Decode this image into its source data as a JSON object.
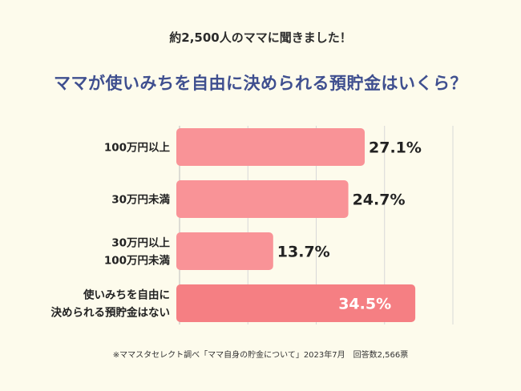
{
  "header": {
    "subtitle": "約2,500人のママに聞きました！",
    "title": "ママが使いみちを自由に決められる預貯金はいくら？"
  },
  "colors": {
    "background": "#fdfbec",
    "bar": "#f99397",
    "bar_highlight": "#f57f83",
    "grid": "#d8d8d8",
    "title": "#3f4f8f"
  },
  "chart_data": {
    "type": "bar",
    "orientation": "horizontal",
    "categories": [
      [
        "100万円以上"
      ],
      [
        "30万円未満"
      ],
      [
        "30万円以上",
        "100万円未満"
      ],
      [
        "使いみちを自由に",
        "決められる預貯金はない"
      ]
    ],
    "values": [
      27.1,
      24.7,
      13.7,
      34.5
    ],
    "value_labels": [
      "27.1%",
      "24.7%",
      "13.7%",
      "34.5%"
    ],
    "highlight_index": 3,
    "xlim": [
      0,
      40
    ],
    "grid": true,
    "gridlines": [
      10,
      20,
      30,
      40
    ]
  },
  "footnote": "※ママスタセレクト調べ「ママ自身の貯金について」2023年7月　回答数2,566票"
}
